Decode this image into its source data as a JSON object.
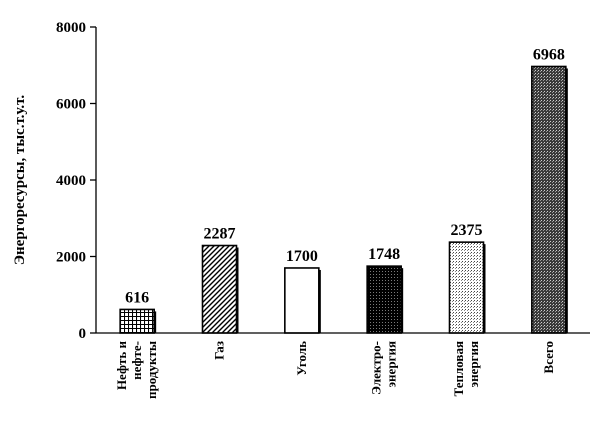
{
  "chart_data": {
    "type": "bar",
    "title": "",
    "xlabel": "",
    "ylabel": "Энергоресурсы, тыс.т.у.т.",
    "ylim": [
      0,
      8000
    ],
    "yticks": [
      0,
      2000,
      4000,
      6000,
      8000
    ],
    "grid": false,
    "categories": [
      [
        "Нефть и",
        "нефте-",
        "продукты"
      ],
      [
        "Газ"
      ],
      [
        "Уголь"
      ],
      [
        "Электро-",
        "энергия"
      ],
      [
        "Тепловая",
        "энергия"
      ],
      [
        "Всего"
      ]
    ],
    "values": [
      616,
      2287,
      1700,
      1748,
      2375,
      6968
    ],
    "data_labels": [
      "616",
      "2287",
      "1700",
      "1748",
      "2375",
      "6968"
    ],
    "fills": [
      "grid-hatch",
      "diagonal-hatch",
      "white",
      "black-dotted",
      "light-dotted",
      "dense-crosshatch"
    ]
  }
}
